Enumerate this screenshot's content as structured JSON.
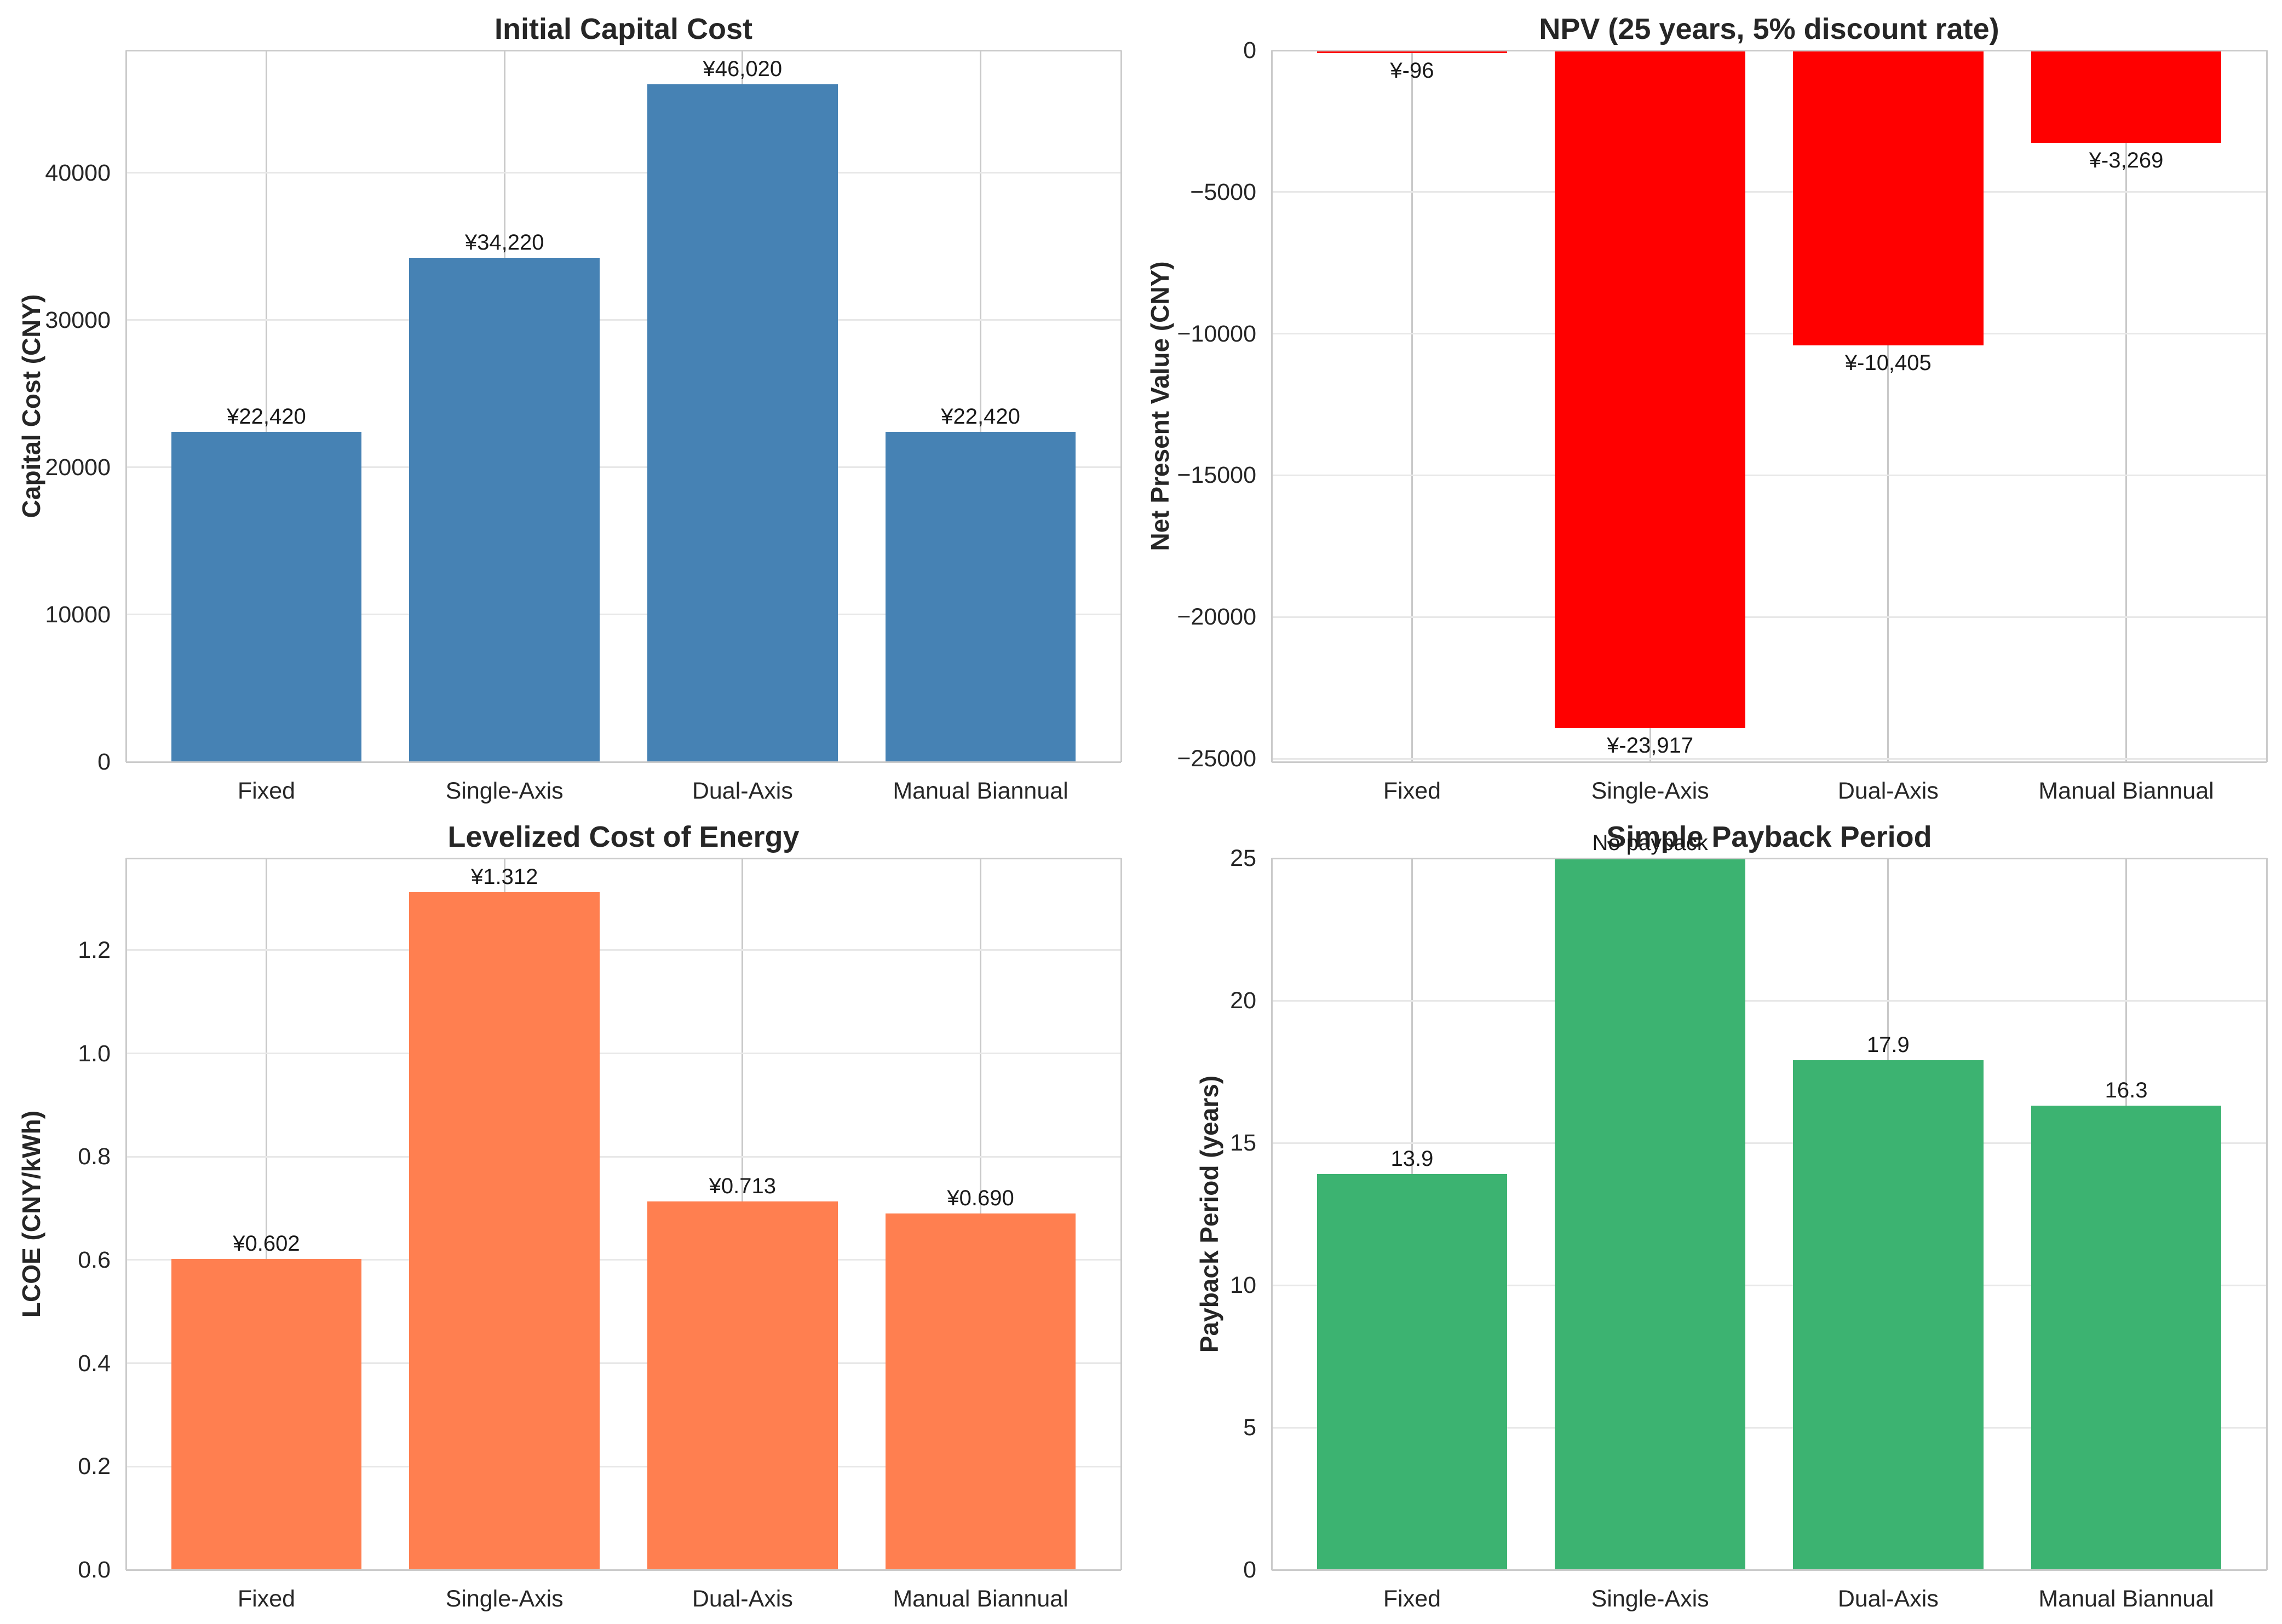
{
  "styles": {
    "background": "#ffffff",
    "text_color": "#262626",
    "spine_color": "#cbcbcb",
    "grid_vertical_color": "#c9c9c9",
    "grid_horizontal_color": "#e8e8e8"
  },
  "chart_data": [
    {
      "type": "bar",
      "title": "Initial Capital Cost",
      "ylabel": "Capital Cost (CNY)",
      "xlabel": "",
      "categories": [
        "Fixed",
        "Single-Axis",
        "Dual-Axis",
        "Manual Biannual"
      ],
      "values": [
        22420,
        34220,
        46020,
        22420
      ],
      "bar_labels": [
        "¥22,420",
        "¥34,220",
        "¥46,020",
        "¥22,420"
      ],
      "bar_color": "#4682b4",
      "ylim": [
        0,
        48321
      ],
      "yticks": [
        0,
        10000,
        20000,
        30000,
        40000
      ],
      "ytick_labels": [
        "0",
        "10000",
        "20000",
        "30000",
        "40000"
      ],
      "label_position": "above",
      "grid": true,
      "legend": "none"
    },
    {
      "type": "bar",
      "title": "NPV (25 years, 5% discount rate)",
      "ylabel": "Net Present Value (CNY)",
      "xlabel": "",
      "categories": [
        "Fixed",
        "Single-Axis",
        "Dual-Axis",
        "Manual Biannual"
      ],
      "values": [
        -96,
        -23917,
        -10405,
        -3269
      ],
      "bar_labels": [
        "¥-96",
        "¥-23,917",
        "¥-10,405",
        "¥-3,269"
      ],
      "bar_color": "#ff0000",
      "ylim": [
        -25113,
        0
      ],
      "yticks": [
        0,
        -5000,
        -10000,
        -15000,
        -20000,
        -25000
      ],
      "ytick_labels": [
        "0",
        "−5000",
        "−10000",
        "−15000",
        "−20000",
        "−25000"
      ],
      "label_position": "below",
      "grid": true,
      "legend": "none"
    },
    {
      "type": "bar",
      "title": "Levelized Cost of Energy",
      "ylabel": "LCOE (CNY/kWh)",
      "xlabel": "",
      "categories": [
        "Fixed",
        "Single-Axis",
        "Dual-Axis",
        "Manual Biannual"
      ],
      "values": [
        0.602,
        1.312,
        0.713,
        0.69
      ],
      "bar_labels": [
        "¥0.602",
        "¥1.312",
        "¥0.713",
        "¥0.690"
      ],
      "bar_color": "#ff7f50",
      "ylim": [
        0,
        1.378
      ],
      "yticks": [
        0,
        0.2,
        0.4,
        0.6,
        0.8,
        1.0,
        1.2
      ],
      "ytick_labels": [
        "0.0",
        "0.2",
        "0.4",
        "0.6",
        "0.8",
        "1.0",
        "1.2"
      ],
      "label_position": "above",
      "grid": true,
      "legend": "none"
    },
    {
      "type": "bar",
      "title": "Simple Payback Period",
      "ylabel": "Payback Period (years)",
      "xlabel": "",
      "categories": [
        "Fixed",
        "Single-Axis",
        "Dual-Axis",
        "Manual Biannual"
      ],
      "values": [
        13.9,
        25,
        17.9,
        16.3
      ],
      "bar_labels": [
        "13.9",
        "No payback",
        "17.9",
        "16.3"
      ],
      "bar_color": "#3cb371",
      "ylim": [
        0,
        25
      ],
      "yticks": [
        0,
        5,
        10,
        15,
        20,
        25
      ],
      "ytick_labels": [
        "0",
        "5",
        "10",
        "15",
        "20",
        "25"
      ],
      "label_position": "above",
      "grid": true,
      "legend": "none"
    }
  ]
}
